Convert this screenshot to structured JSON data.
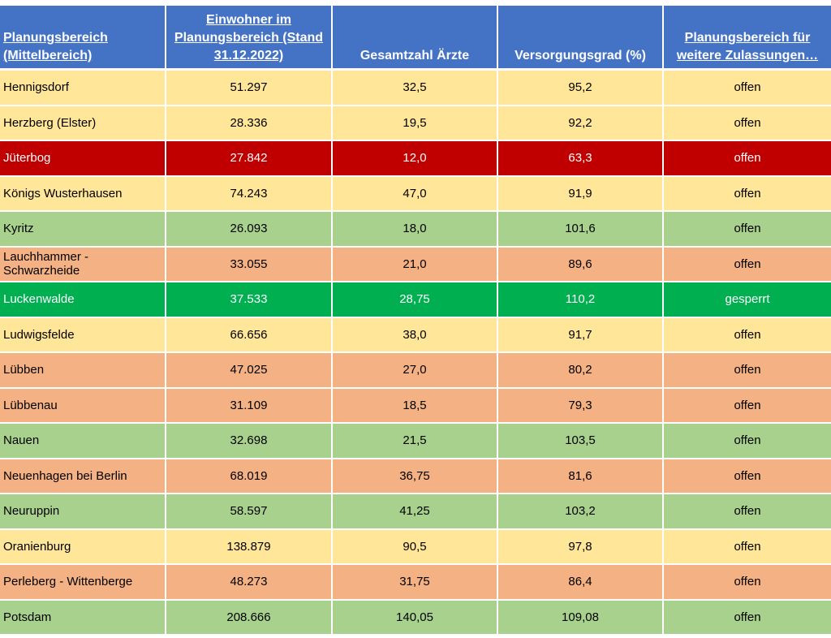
{
  "table": {
    "headers": [
      "Planungsbereich (Mittelbereich)",
      "Einwohner im Planungsbereich (Stand 31.12.2022)",
      "Gesamtzahl Ärzte",
      "Versorgungsgrad (%)",
      "Planungsbereich für weitere Zulassungen…"
    ],
    "rows": [
      {
        "name": "Hennigsdorf",
        "einwohner": "51.297",
        "aerzte": "32,5",
        "grad": "95,2",
        "status": "offen",
        "color": "yellow"
      },
      {
        "name": "Herzberg (Elster)",
        "einwohner": "28.336",
        "aerzte": "19,5",
        "grad": "92,2",
        "status": "offen",
        "color": "yellow"
      },
      {
        "name": "Jüterbog",
        "einwohner": "27.842",
        "aerzte": "12,0",
        "grad": "63,3",
        "status": "offen",
        "color": "red"
      },
      {
        "name": "Königs Wusterhausen",
        "einwohner": "74.243",
        "aerzte": "47,0",
        "grad": "91,9",
        "status": "offen",
        "color": "yellow"
      },
      {
        "name": "Kyritz",
        "einwohner": "26.093",
        "aerzte": "18,0",
        "grad": "101,6",
        "status": "offen",
        "color": "lgreen"
      },
      {
        "name": "Lauchhammer - Schwarzheide",
        "einwohner": "33.055",
        "aerzte": "21,0",
        "grad": "89,6",
        "status": "offen",
        "color": "salmon"
      },
      {
        "name": "Luckenwalde",
        "einwohner": "37.533",
        "aerzte": "28,75",
        "grad": "110,2",
        "status": "gesperrt",
        "color": "dgreen"
      },
      {
        "name": "Ludwigsfelde",
        "einwohner": "66.656",
        "aerzte": "38,0",
        "grad": "91,7",
        "status": "offen",
        "color": "yellow"
      },
      {
        "name": "Lübben",
        "einwohner": "47.025",
        "aerzte": "27,0",
        "grad": "80,2",
        "status": "offen",
        "color": "salmon"
      },
      {
        "name": "Lübbenau",
        "einwohner": "31.109",
        "aerzte": "18,5",
        "grad": "79,3",
        "status": "offen",
        "color": "salmon"
      },
      {
        "name": "Nauen",
        "einwohner": "32.698",
        "aerzte": "21,5",
        "grad": "103,5",
        "status": "offen",
        "color": "lgreen"
      },
      {
        "name": "Neuenhagen bei Berlin",
        "einwohner": "68.019",
        "aerzte": "36,75",
        "grad": "81,6",
        "status": "offen",
        "color": "salmon"
      },
      {
        "name": "Neuruppin",
        "einwohner": "58.597",
        "aerzte": "41,25",
        "grad": "103,2",
        "status": "offen",
        "color": "lgreen"
      },
      {
        "name": "Oranienburg",
        "einwohner": "138.879",
        "aerzte": "90,5",
        "grad": "97,8",
        "status": "offen",
        "color": "yellow"
      },
      {
        "name": "Perleberg - Wittenberge",
        "einwohner": "48.273",
        "aerzte": "31,75",
        "grad": "86,4",
        "status": "offen",
        "color": "salmon"
      },
      {
        "name": "Potsdam",
        "einwohner": "208.666",
        "aerzte": "140,05",
        "grad": "109,08",
        "status": "offen",
        "color": "lgreen"
      }
    ]
  },
  "colors": {
    "header": "#4472c4",
    "yellow": "#ffe699",
    "red": "#c00000",
    "salmon": "#f4b183",
    "lgreen": "#a9d18e",
    "dgreen": "#00b050"
  }
}
